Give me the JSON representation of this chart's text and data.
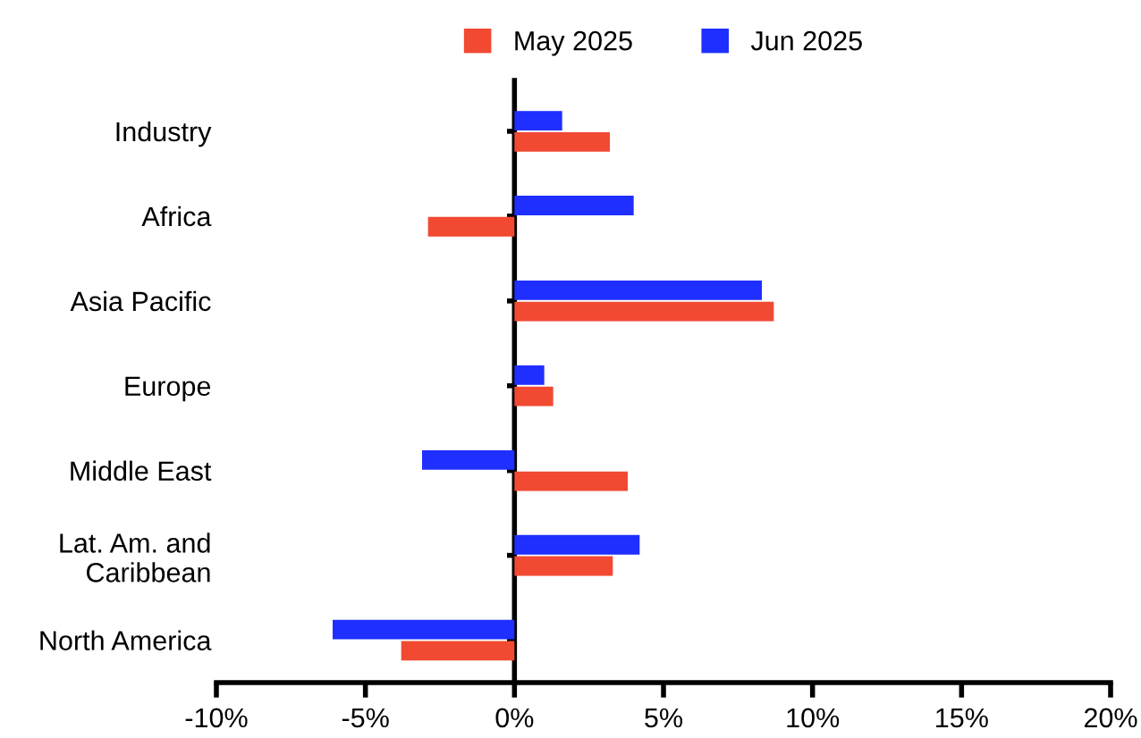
{
  "chart_data": {
    "type": "bar",
    "orientation": "horizontal",
    "categories": [
      "Industry",
      "Africa",
      "Asia Pacific",
      "Europe",
      "Middle East",
      "Lat. Am. and\nCaribbean",
      "North America"
    ],
    "series": [
      {
        "name": "May 2025",
        "color": "#f24933",
        "values": [
          3.2,
          -2.9,
          8.7,
          1.3,
          3.8,
          3.3,
          -3.8
        ]
      },
      {
        "name": "Jun 2025",
        "color": "#1f2fff",
        "values": [
          1.6,
          4.0,
          8.3,
          1.0,
          -3.1,
          4.2,
          -6.1
        ]
      }
    ],
    "xlim": [
      -10,
      20
    ],
    "xticks": [
      {
        "value": -10,
        "label": "-10%"
      },
      {
        "value": -5,
        "label": "-5%"
      },
      {
        "value": 0,
        "label": "0%"
      },
      {
        "value": 5,
        "label": "5%"
      },
      {
        "value": 10,
        "label": "10%"
      },
      {
        "value": 15,
        "label": "15%"
      },
      {
        "value": 20,
        "label": "20%"
      }
    ],
    "legend": "top"
  }
}
